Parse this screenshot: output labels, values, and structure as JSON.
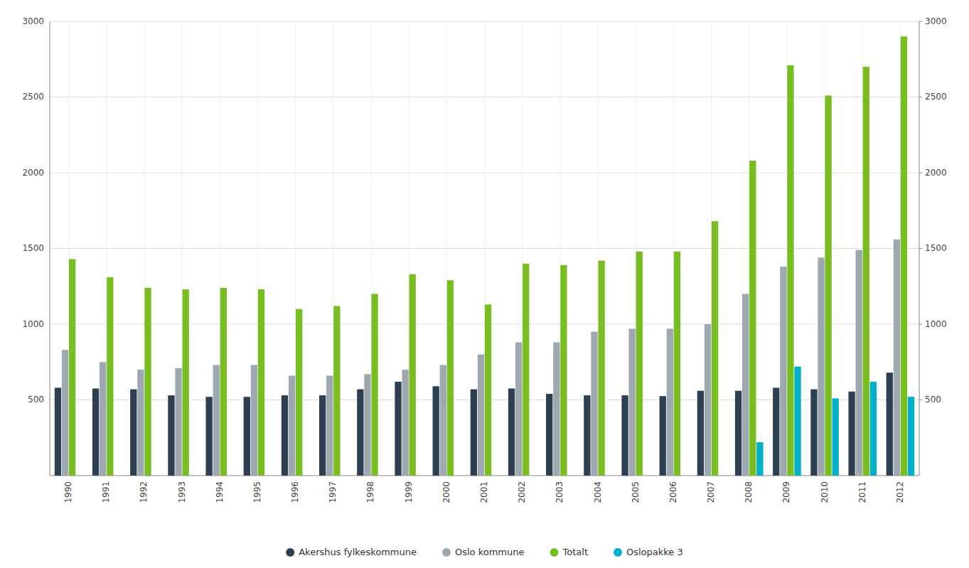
{
  "chart_data": {
    "type": "bar",
    "categories": [
      "1990",
      "1991",
      "1992",
      "1993",
      "1994",
      "1995",
      "1996",
      "1997",
      "1998",
      "1999",
      "2000",
      "2001",
      "2002",
      "2003",
      "2004",
      "2005",
      "2006",
      "2007",
      "2008",
      "2009",
      "2010",
      "2011",
      "2012"
    ],
    "series": [
      {
        "name": "Akershus fylkeskommune",
        "color": "#2d3f50",
        "values": [
          580,
          575,
          570,
          530,
          520,
          520,
          530,
          530,
          570,
          620,
          590,
          570,
          575,
          540,
          530,
          530,
          525,
          560,
          560,
          580,
          570,
          555,
          680
        ]
      },
      {
        "name": "Oslo kommune",
        "color": "#9ea8b0",
        "values": [
          830,
          750,
          700,
          710,
          730,
          730,
          660,
          660,
          670,
          700,
          730,
          800,
          880,
          880,
          950,
          970,
          970,
          1000,
          1200,
          1380,
          1440,
          1490,
          1560
        ]
      },
      {
        "name": "Totalt",
        "color": "#78be20",
        "values": [
          1430,
          1310,
          1240,
          1230,
          1240,
          1230,
          1100,
          1120,
          1200,
          1330,
          1290,
          1130,
          1400,
          1390,
          1420,
          1480,
          1480,
          1680,
          2080,
          2710,
          2510,
          2700,
          2900
        ]
      },
      {
        "name": "Oslopakke 3",
        "color": "#00b0c8",
        "values": [
          0,
          0,
          0,
          0,
          0,
          0,
          0,
          0,
          0,
          0,
          0,
          0,
          0,
          0,
          0,
          0,
          0,
          0,
          220,
          720,
          510,
          620,
          520
        ]
      }
    ],
    "ylim": [
      0,
      3000
    ],
    "yticks": [
      500,
      1000,
      1500,
      2000,
      2500,
      3000
    ],
    "y2lim": [
      0,
      3000
    ],
    "y2ticks": [
      500,
      1000,
      1500,
      2000,
      2500,
      3000
    ],
    "grid": true,
    "legend": "bottom"
  }
}
